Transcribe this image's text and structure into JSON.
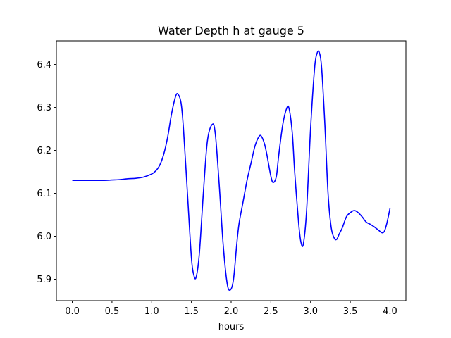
{
  "chart_data": {
    "type": "line",
    "title": "Water Depth h at gauge 5",
    "xlabel": "hours",
    "ylabel": "",
    "xlim": [
      -0.2,
      4.2
    ],
    "ylim": [
      5.85,
      6.455
    ],
    "xticks": [
      0.0,
      0.5,
      1.0,
      1.5,
      2.0,
      2.5,
      3.0,
      3.5,
      4.0
    ],
    "xtick_labels": [
      "0.0",
      "0.5",
      "1.0",
      "1.5",
      "2.0",
      "2.5",
      "3.0",
      "3.5",
      "4.0"
    ],
    "yticks": [
      5.9,
      6.0,
      6.1,
      6.2,
      6.3,
      6.4
    ],
    "ytick_labels": [
      "5.9",
      "6.0",
      "6.1",
      "6.2",
      "6.3",
      "6.4"
    ],
    "grid": false,
    "color": "#0000ff",
    "series": [
      {
        "x": [
          0.0,
          0.2,
          0.4,
          0.5,
          0.6,
          0.7,
          0.8,
          0.9,
          1.0,
          1.05,
          1.1,
          1.15,
          1.2,
          1.25,
          1.3,
          1.33,
          1.37,
          1.4,
          1.45,
          1.5,
          1.53,
          1.56,
          1.6,
          1.65,
          1.7,
          1.76,
          1.8,
          1.85,
          1.9,
          1.95,
          1.99,
          2.03,
          2.07,
          2.1,
          2.15,
          2.2,
          2.25,
          2.3,
          2.35,
          2.38,
          2.42,
          2.45,
          2.5,
          2.53,
          2.57,
          2.6,
          2.65,
          2.7,
          2.73,
          2.77,
          2.8,
          2.85,
          2.88,
          2.91,
          2.95,
          3.0,
          3.05,
          3.08,
          3.11,
          3.14,
          3.18,
          3.22,
          3.26,
          3.3,
          3.33,
          3.36,
          3.4,
          3.45,
          3.5,
          3.55,
          3.6,
          3.65,
          3.7,
          3.75,
          3.8,
          3.85,
          3.9,
          3.93,
          3.96,
          4.0
        ],
        "y": [
          6.13,
          6.13,
          6.13,
          6.131,
          6.132,
          6.134,
          6.135,
          6.138,
          6.145,
          6.152,
          6.165,
          6.19,
          6.23,
          6.285,
          6.325,
          6.331,
          6.31,
          6.25,
          6.1,
          5.95,
          5.91,
          5.905,
          5.96,
          6.1,
          6.22,
          6.26,
          6.24,
          6.12,
          5.98,
          5.89,
          5.875,
          5.9,
          5.98,
          6.03,
          6.08,
          6.13,
          6.17,
          6.21,
          6.232,
          6.233,
          6.215,
          6.19,
          6.14,
          6.125,
          6.14,
          6.19,
          6.26,
          6.298,
          6.297,
          6.24,
          6.15,
          6.03,
          5.985,
          5.983,
          6.06,
          6.25,
          6.39,
          6.425,
          6.428,
          6.39,
          6.26,
          6.1,
          6.02,
          5.995,
          5.993,
          6.005,
          6.02,
          6.045,
          6.055,
          6.06,
          6.055,
          6.045,
          6.033,
          6.028,
          6.022,
          6.015,
          6.008,
          6.012,
          6.03,
          6.065
        ]
      }
    ]
  }
}
